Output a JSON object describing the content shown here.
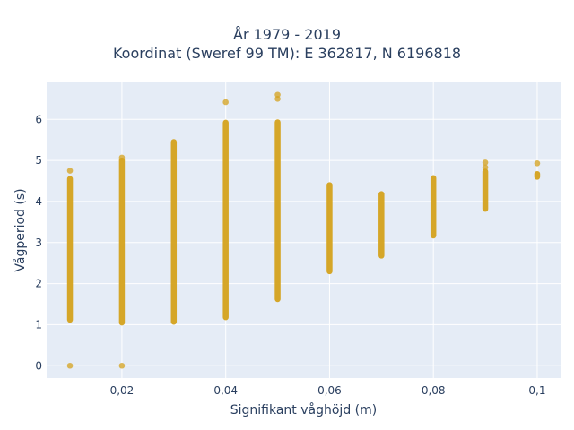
{
  "chart_data": {
    "type": "scatter",
    "title_lines": [
      "År 1979 - 2019",
      "Koordinat (Sweref 99 TM): E 362817, N 6196818"
    ],
    "xlabel": "Signifikant våghöjd (m)",
    "ylabel": "Vågperiod (s)",
    "xlim": [
      0.0055,
      0.1045
    ],
    "ylim": [
      -0.3,
      6.9
    ],
    "x_ticks": [
      0.02,
      0.04,
      0.06,
      0.08,
      0.1
    ],
    "x_tick_labels": [
      "0,02",
      "0,04",
      "0,06",
      "0,08",
      "0,1"
    ],
    "y_ticks": [
      0,
      1,
      2,
      3,
      4,
      5,
      6
    ],
    "y_tick_labels": [
      "0",
      "1",
      "2",
      "3",
      "4",
      "5",
      "6"
    ],
    "grid": true,
    "plot_background": "#e5ecf6",
    "marker_color": "#d4a21c",
    "columns": [
      {
        "x": 0.01,
        "range": [
          1.12,
          4.55
        ],
        "outliers": [
          0,
          4.75
        ]
      },
      {
        "x": 0.02,
        "range": [
          1.05,
          5.0
        ],
        "outliers": [
          0,
          5.07
        ]
      },
      {
        "x": 0.03,
        "range": [
          1.07,
          5.45
        ],
        "outliers": []
      },
      {
        "x": 0.04,
        "range": [
          1.18,
          5.92
        ],
        "outliers": [
          6.42
        ]
      },
      {
        "x": 0.05,
        "range": [
          1.62,
          5.93
        ],
        "outliers": [
          6.5,
          6.6
        ]
      },
      {
        "x": 0.06,
        "range": [
          2.3,
          4.4
        ],
        "outliers": []
      },
      {
        "x": 0.07,
        "range": [
          2.68,
          4.18
        ],
        "outliers": []
      },
      {
        "x": 0.08,
        "range": [
          3.17,
          4.57
        ],
        "outliers": []
      },
      {
        "x": 0.09,
        "range": [
          3.82,
          4.73
        ],
        "outliers": [
          4.83,
          4.95
        ]
      },
      {
        "x": 0.1,
        "range": [
          4.6,
          4.67
        ],
        "outliers": [
          4.93
        ]
      }
    ]
  }
}
